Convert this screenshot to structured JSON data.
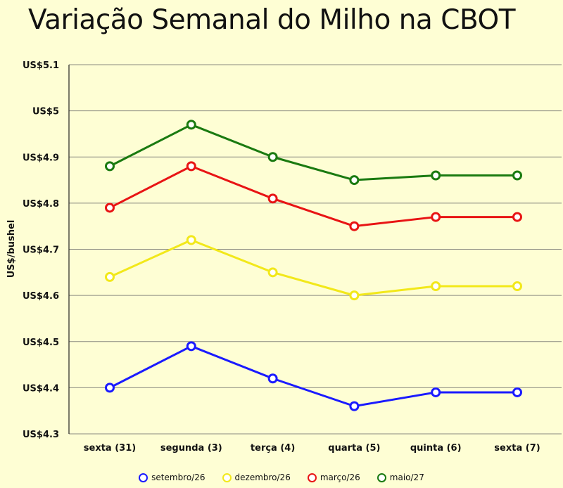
{
  "chart_data": {
    "type": "line",
    "title": "Variação Semanal do Milho na CBOT",
    "ylabel": "US$/bushel",
    "xlabel": "",
    "categories": [
      "sexta (31)",
      "segunda (3)",
      "terça (4)",
      "quarta (5)",
      "quinta (6)",
      "sexta (7)"
    ],
    "ylim": [
      4.3,
      5.1
    ],
    "yticks": [
      4.3,
      4.4,
      4.5,
      4.6,
      4.7,
      4.8,
      4.9,
      5.0,
      5.1
    ],
    "ytick_labels": [
      "US$4.3",
      "US$4.4",
      "US$4.5",
      "US$4.6",
      "US$4.7",
      "US$4.8",
      "US$4.9",
      "US$5",
      "US$5.1"
    ],
    "grid": "horizontal",
    "legend_position": "bottom",
    "series": [
      {
        "name": "setembro/26",
        "color": "#1a1aff",
        "values": [
          4.4,
          4.49,
          4.42,
          4.36,
          4.39,
          4.39
        ]
      },
      {
        "name": "dezembro/26",
        "color": "#f2e81a",
        "values": [
          4.64,
          4.72,
          4.65,
          4.6,
          4.62,
          4.62
        ]
      },
      {
        "name": "março/26",
        "color": "#e81414",
        "values": [
          4.79,
          4.88,
          4.81,
          4.75,
          4.77,
          4.77
        ]
      },
      {
        "name": "maio/27",
        "color": "#1a7a10",
        "values": [
          4.88,
          4.97,
          4.9,
          4.85,
          4.86,
          4.86
        ]
      }
    ]
  }
}
